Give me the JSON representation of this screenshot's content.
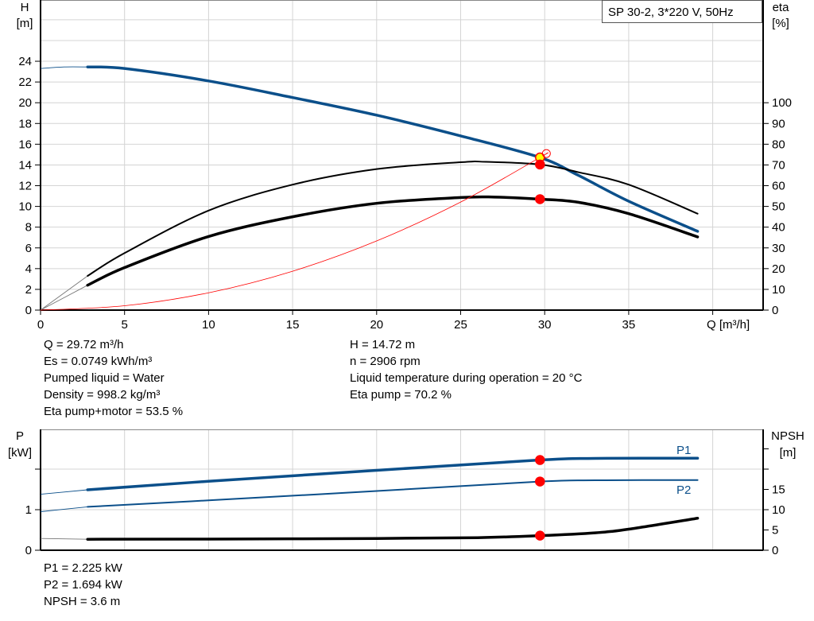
{
  "chart_data": [
    {
      "type": "line",
      "title": "SP 30-2, 3*220 V, 50Hz",
      "xlabel": "Q [m³/h]",
      "ylabel_left": [
        "H",
        "[m]"
      ],
      "ylabel_right": [
        "eta",
        "[%]"
      ],
      "xlim": [
        0,
        43
      ],
      "ylim_left": [
        0,
        30
      ],
      "ylim_right": [
        0,
        115
      ],
      "x_ticks": [
        0,
        5,
        10,
        15,
        20,
        25,
        30,
        35
      ],
      "y_ticks_left": [
        0,
        2,
        4,
        6,
        8,
        10,
        12,
        14,
        16,
        18,
        20,
        22,
        24
      ],
      "y_ticks_right": [
        0,
        10,
        20,
        30,
        40,
        50,
        60,
        70,
        80,
        90,
        100
      ],
      "grid": true,
      "series": [
        {
          "axis": "left",
          "color": "#0b4f8a",
          "style": "thick",
          "extension": [
            [
              0,
              23.3
            ],
            [
              1.4,
              23.45
            ],
            [
              2.8,
              23.45
            ]
          ],
          "points": [
            [
              2.8,
              23.45
            ],
            [
              5,
              23.3
            ],
            [
              10,
              22.1
            ],
            [
              15,
              20.5
            ],
            [
              20,
              18.8
            ],
            [
              25,
              16.8
            ],
            [
              29.72,
              14.72
            ],
            [
              32,
              13.0
            ],
            [
              35,
              10.5
            ],
            [
              39.1,
              7.6
            ]
          ]
        },
        {
          "axis": "right",
          "color": "#000000",
          "style": "medium",
          "extension": [
            [
              0,
              0
            ],
            [
              2.8,
              16.5
            ]
          ],
          "points": [
            [
              2.8,
              16.5
            ],
            [
              5,
              27.5
            ],
            [
              10,
              48
            ],
            [
              15,
              60.5
            ],
            [
              20,
              68
            ],
            [
              25,
              71.3
            ],
            [
              26.5,
              71.5
            ],
            [
              29.72,
              70.2
            ],
            [
              32,
              66.5
            ],
            [
              35,
              60.5
            ],
            [
              39.1,
              46.5
            ]
          ]
        },
        {
          "axis": "right",
          "color": "#000000",
          "style": "thick",
          "extension": [
            [
              0,
              0
            ],
            [
              2.8,
              12
            ]
          ],
          "points": [
            [
              2.8,
              12
            ],
            [
              5,
              20.5
            ],
            [
              10,
              35.5
            ],
            [
              15,
              45
            ],
            [
              20,
              51.5
            ],
            [
              25,
              54.3
            ],
            [
              27,
              54.5
            ],
            [
              29.72,
              53.5
            ],
            [
              32,
              52
            ],
            [
              35,
              46.5
            ],
            [
              39.1,
              35.3
            ]
          ]
        },
        {
          "axis": "left",
          "color": "#ff0000",
          "style": "hairline",
          "points": [
            [
              0,
              0
            ],
            [
              5,
              0.42
            ],
            [
              10,
              1.67
            ],
            [
              15,
              3.75
            ],
            [
              20,
              6.67
            ],
            [
              25,
              10.42
            ],
            [
              29.72,
              14.72
            ],
            [
              30.1,
              15.1
            ]
          ]
        }
      ],
      "markers": [
        {
          "q": 29.72,
          "value": 14.72,
          "axis": "left",
          "fill": "#ffff00",
          "stroke": "#ff0000"
        },
        {
          "q": 29.72,
          "value": 70.2,
          "axis": "right",
          "fill": "#ff0000",
          "stroke": "#ff0000"
        },
        {
          "q": 29.72,
          "value": 53.5,
          "axis": "right",
          "fill": "#ff0000",
          "stroke": "#ff0000"
        },
        {
          "q": 30.1,
          "value": 15.1,
          "axis": "left",
          "fill": "none",
          "stroke": "#ff0000"
        }
      ]
    },
    {
      "type": "line",
      "ylabel_left": [
        "P",
        "[kW]"
      ],
      "ylabel_right": [
        "NPSH",
        "[m]"
      ],
      "xlim": [
        0,
        43
      ],
      "ylim_left": [
        0,
        3
      ],
      "ylim_right": [
        0,
        30
      ],
      "y_ticks_left": [
        0,
        1,
        2
      ],
      "y_tick_labels_left": [
        "0",
        "1",
        ""
      ],
      "y_ticks_right": [
        0,
        5,
        10,
        15,
        20,
        25
      ],
      "y_tick_labels_right": [
        "0",
        "5",
        "10",
        "15",
        "",
        ""
      ],
      "grid": true,
      "series": [
        {
          "name": "P1",
          "axis": "left",
          "color": "#0b4f8a",
          "style": "thick",
          "extension": [
            [
              0,
              1.38
            ],
            [
              2.8,
              1.49
            ]
          ],
          "points": [
            [
              2.8,
              1.49
            ],
            [
              10,
              1.7
            ],
            [
              20,
              1.97
            ],
            [
              29.72,
              2.225
            ],
            [
              33,
              2.265
            ],
            [
              39.1,
              2.27
            ]
          ]
        },
        {
          "name": "P2",
          "axis": "left",
          "color": "#0b4f8a",
          "style": "medium",
          "extension": [
            [
              0,
              0.95
            ],
            [
              2.8,
              1.07
            ]
          ],
          "points": [
            [
              2.8,
              1.07
            ],
            [
              10,
              1.23
            ],
            [
              20,
              1.46
            ],
            [
              29.72,
              1.694
            ],
            [
              33,
              1.725
            ],
            [
              39.1,
              1.73
            ]
          ]
        },
        {
          "axis": "right",
          "color": "#000000",
          "style": "thick",
          "extension": [
            [
              0,
              2.9
            ],
            [
              2.8,
              2.7
            ]
          ],
          "points": [
            [
              2.8,
              2.7
            ],
            [
              10,
              2.75
            ],
            [
              20,
              2.9
            ],
            [
              26,
              3.1
            ],
            [
              29.72,
              3.6
            ],
            [
              33,
              4.3
            ],
            [
              35,
              5.2
            ],
            [
              39.1,
              7.9
            ]
          ]
        }
      ],
      "markers": [
        {
          "q": 29.72,
          "value": 2.225,
          "axis": "left",
          "fill": "#ff0000",
          "stroke": "#ff0000"
        },
        {
          "q": 29.72,
          "value": 1.694,
          "axis": "left",
          "fill": "#ff0000",
          "stroke": "#ff0000"
        },
        {
          "q": 29.72,
          "value": 3.6,
          "axis": "right",
          "fill": "#ff0000",
          "stroke": "#ff0000"
        }
      ]
    }
  ],
  "info_top": {
    "left": [
      "Q = 29.72 m³/h",
      "Es = 0.0749 kWh/m³",
      "Pumped liquid = Water",
      "Density = 998.2 kg/m³",
      "Eta pump+motor = 53.5 %"
    ],
    "right": [
      "H = 14.72 m",
      "n = 2906 rpm",
      "Liquid temperature during operation = 20 °C",
      "Eta pump = 70.2 %"
    ]
  },
  "info_bottom": [
    "P1 = 2.225 kW",
    "P2 = 1.694 kW",
    "NPSH = 3.6 m"
  ]
}
